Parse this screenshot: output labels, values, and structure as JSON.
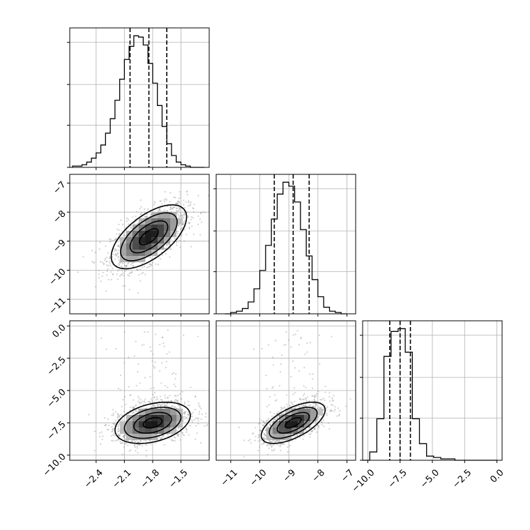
{
  "chart_data": {
    "type": "corner",
    "title": "",
    "grid": true,
    "colors": {
      "line": "#000000",
      "grid": "#b0b0b0",
      "scatter": "#9a9a9a"
    },
    "parameters": [
      {
        "index": 0,
        "range": [
          -2.68,
          -1.2
        ],
        "ticks": [
          -2.4,
          -2.1,
          -1.8,
          -1.5
        ],
        "tick_labels": [
          "−2.4",
          "−2.1",
          "−1.8",
          "−1.5"
        ],
        "quantiles": [
          -2.04,
          -1.84,
          -1.65
        ],
        "histogram": {
          "edges": [
            -2.65,
            -2.6,
            -2.55,
            -2.5,
            -2.45,
            -2.4,
            -2.35,
            -2.3,
            -2.25,
            -2.2,
            -2.15,
            -2.1,
            -2.05,
            -2.0,
            -1.95,
            -1.9,
            -1.85,
            -1.8,
            -1.75,
            -1.7,
            -1.65,
            -1.6,
            -1.55,
            -1.5,
            -1.45,
            -1.4,
            -1.35,
            -1.3,
            -1.25
          ],
          "counts": [
            0.01,
            0.01,
            0.02,
            0.04,
            0.07,
            0.11,
            0.17,
            0.26,
            0.37,
            0.51,
            0.67,
            0.82,
            0.92,
            1.0,
            0.99,
            0.93,
            0.79,
            0.64,
            0.47,
            0.31,
            0.18,
            0.09,
            0.04,
            0.02,
            0.01,
            0.0,
            0.0,
            0.0
          ]
        }
      },
      {
        "index": 1,
        "range": [
          -11.5,
          -6.7
        ],
        "ticks": [
          -11,
          -10,
          -9,
          -8,
          -7
        ],
        "tick_labels": [
          "−11",
          "−10",
          "−9",
          "−8",
          "−7"
        ],
        "quantiles": [
          -9.5,
          -8.85,
          -8.3
        ],
        "histogram": {
          "edges": [
            -11.2,
            -11.0,
            -10.8,
            -10.6,
            -10.4,
            -10.2,
            -10.0,
            -9.8,
            -9.6,
            -9.4,
            -9.2,
            -9.0,
            -8.8,
            -8.6,
            -8.4,
            -8.2,
            -8.0,
            -7.8,
            -7.6,
            -7.4,
            -7.2,
            -7.0
          ],
          "counts": [
            0.0,
            0.01,
            0.02,
            0.04,
            0.09,
            0.19,
            0.33,
            0.52,
            0.72,
            0.91,
            1.0,
            0.97,
            0.85,
            0.64,
            0.44,
            0.26,
            0.13,
            0.05,
            0.02,
            0.01,
            0.0
          ]
        }
      },
      {
        "index": 2,
        "range": [
          -10.4,
          0.4
        ],
        "ticks": [
          -10.0,
          -7.5,
          -5.0,
          -2.5,
          0.0
        ],
        "tick_labels": [
          "−10.0",
          "−7.5",
          "−5.0",
          "−2.5",
          "0.0"
        ],
        "tick_labels_y": [
          "−10.0",
          "−7.5",
          "−5.0",
          "−2.5",
          "0.0"
        ],
        "quantiles": [
          -8.3,
          -7.5,
          -6.7
        ],
        "histogram": {
          "edges": [
            -10.4,
            -9.85,
            -9.3,
            -8.75,
            -8.2,
            -7.65,
            -7.1,
            -6.55,
            -6.0,
            -5.45,
            -4.9,
            -4.35,
            -3.8,
            -3.25,
            -2.7,
            -2.15,
            -1.6,
            -1.05,
            -0.5,
            0.05
          ],
          "counts": [
            0.0,
            0.06,
            0.3,
            0.75,
            0.93,
            0.95,
            0.78,
            0.3,
            0.12,
            0.03,
            0.02,
            0.01,
            0.01,
            0.0,
            0.0,
            0.0,
            0.0,
            0.0,
            0.0
          ]
        }
      }
    ],
    "pairs": [
      {
        "x_param": 0,
        "y_param": 1,
        "center": [
          -1.84,
          -8.85
        ],
        "sd": [
          0.2,
          0.55
        ],
        "corr": 0.62,
        "n_points": 1600
      },
      {
        "x_param": 0,
        "y_param": 2,
        "center": [
          -1.8,
          -7.5
        ],
        "sd": [
          0.2,
          0.8
        ],
        "corr": 0.35,
        "n_points": 1600
      },
      {
        "x_param": 1,
        "y_param": 2,
        "center": [
          -8.85,
          -7.5
        ],
        "sd": [
          0.55,
          0.8
        ],
        "corr": 0.62,
        "n_points": 1600
      }
    ],
    "contour_levels_sigma": [
      0.5,
      1.0,
      1.5,
      2.0
    ]
  }
}
